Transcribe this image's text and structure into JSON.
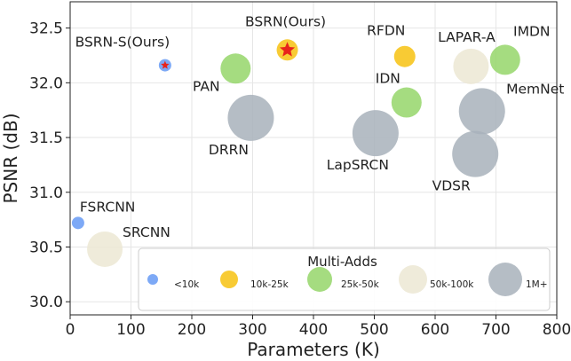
{
  "chart_data": {
    "type": "scatter",
    "title": "",
    "xlabel": "Parameters (K)",
    "ylabel": "PSNR (dB)",
    "xlim": [
      0,
      800
    ],
    "ylim": [
      29.88,
      32.74
    ],
    "xticks": [
      0,
      100,
      200,
      300,
      400,
      500,
      600,
      700,
      800
    ],
    "yticks": [
      30.0,
      30.5,
      31.0,
      31.5,
      32.0,
      32.5
    ],
    "xtick_labels": [
      "0",
      "100",
      "200",
      "300",
      "400",
      "500",
      "600",
      "700",
      "800"
    ],
    "ytick_labels": [
      "30.0",
      "30.5",
      "31.0",
      "31.5",
      "32.0",
      "32.5"
    ],
    "grid": true,
    "colors": {
      "<10k": "#6fa0f5",
      "10k-25k": "#f7c51e",
      "25k-50k": "#95d66a",
      "50k-100k": "#ece8d3",
      "1M+": "#a8b2bb",
      "star": "#e8231b"
    },
    "points": [
      {
        "label": "BSRN-S(Ours)",
        "x": 156,
        "y": 32.16,
        "category": "<10k",
        "star": true
      },
      {
        "label": "BSRN(Ours)",
        "x": 357,
        "y": 32.3,
        "category": "10k-25k",
        "star": true
      },
      {
        "label": "RFDN",
        "x": 550,
        "y": 32.24,
        "category": "10k-25k"
      },
      {
        "label": "LAPAR-A",
        "x": 659,
        "y": 32.15,
        "category": "50k-100k"
      },
      {
        "label": "IMDN",
        "x": 715,
        "y": 32.21,
        "category": "25k-50k"
      },
      {
        "label": "PAN",
        "x": 272,
        "y": 32.13,
        "category": "25k-50k"
      },
      {
        "label": "IDN",
        "x": 553,
        "y": 31.82,
        "category": "25k-50k"
      },
      {
        "label": "MemNet",
        "x": 677,
        "y": 31.74,
        "category": "1M+"
      },
      {
        "label": "DRRN",
        "x": 297,
        "y": 31.68,
        "category": "1M+"
      },
      {
        "label": "LapSRCN",
        "x": 502,
        "y": 31.54,
        "category": "1M+"
      },
      {
        "label": "VDSR",
        "x": 666,
        "y": 31.35,
        "category": "1M+"
      },
      {
        "label": "FSRCNN",
        "x": 13,
        "y": 30.72,
        "category": "<10k"
      },
      {
        "label": "SRCNN",
        "x": 57,
        "y": 30.48,
        "category": "50k-100k"
      }
    ],
    "legend": {
      "title": "Multi-Adds",
      "placement": "lower-right",
      "entries": [
        {
          "label": "<10k",
          "category": "<10k"
        },
        {
          "label": "10k-25k",
          "category": "10k-25k"
        },
        {
          "label": "25k-50k",
          "category": "25k-50k"
        },
        {
          "label": "50k-100k",
          "category": "50k-100k"
        },
        {
          "label": "1M+",
          "category": "1M+"
        }
      ]
    }
  }
}
